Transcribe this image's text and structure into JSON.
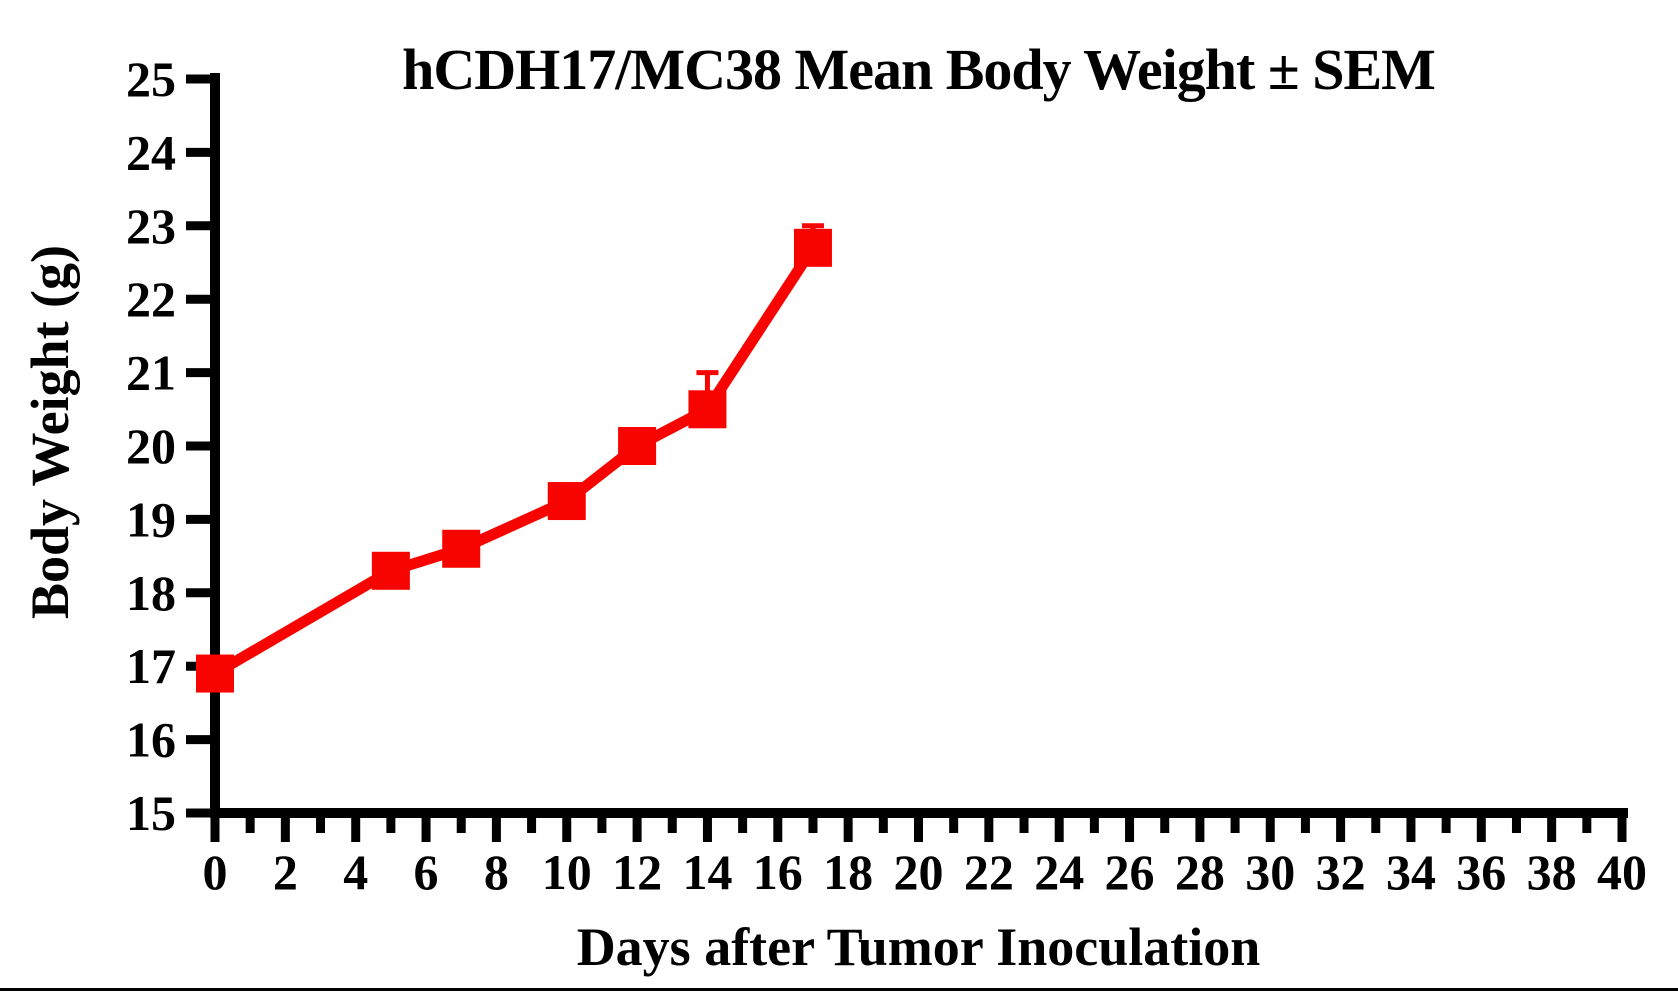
{
  "chart_data": {
    "type": "line",
    "title": "hCDH17/MC38 Mean Body Weight ± SEM",
    "xlabel": "Days after Tumor Inoculation",
    "ylabel": "Body Weight (g)",
    "xlim": [
      0,
      40
    ],
    "ylim": [
      15,
      25
    ],
    "xtick_labels": [
      0,
      2,
      4,
      6,
      8,
      10,
      12,
      14,
      16,
      18,
      20,
      22,
      24,
      26,
      28,
      30,
      32,
      34,
      36,
      38,
      40
    ],
    "xtick_minor": [
      1,
      3,
      5,
      7,
      9,
      11,
      13,
      15,
      17,
      19,
      21,
      23,
      25,
      27,
      29,
      31,
      33,
      35,
      37,
      39
    ],
    "yticks": [
      15,
      16,
      17,
      18,
      19,
      20,
      21,
      22,
      23,
      24,
      25
    ],
    "grid": false,
    "legend_position": "none",
    "axis_color": "#000000",
    "series": [
      {
        "name": "hCDH17/MC38",
        "color": "#f80400",
        "marker": "square",
        "x": [
          0,
          5,
          7,
          10,
          12,
          14,
          17
        ],
        "y": [
          16.9,
          18.3,
          18.6,
          19.25,
          20.0,
          20.5,
          22.7
        ],
        "sem": [
          0,
          0,
          0,
          0,
          0,
          0.5,
          0.3
        ]
      }
    ]
  }
}
